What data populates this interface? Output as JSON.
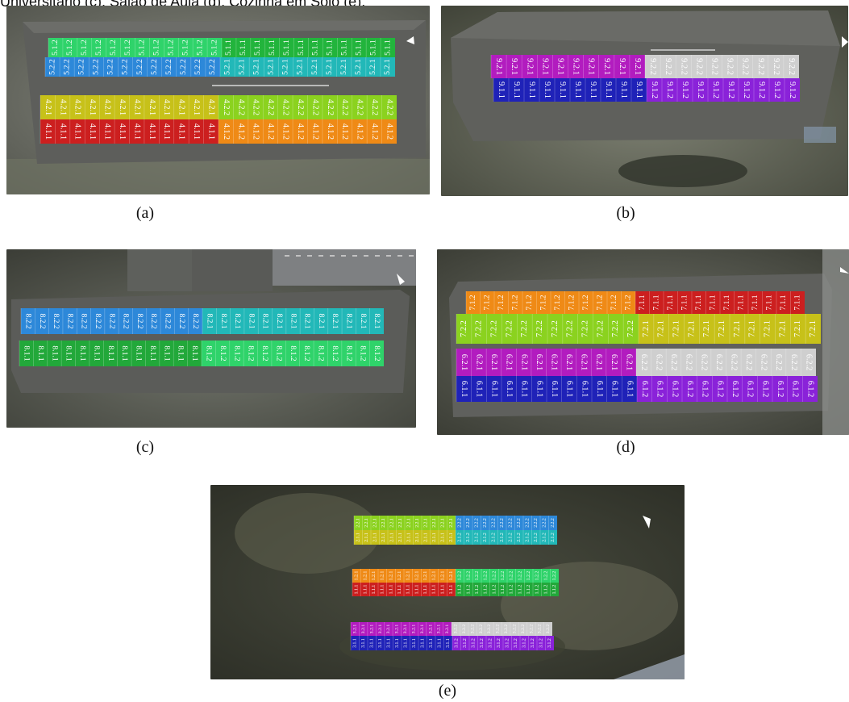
{
  "top_caption": "Universitário (c), Salão de Aula (d), Cozinha em Solo (e).",
  "panels": [
    {
      "id": "a",
      "label": "(a)",
      "rows": [
        {
          "blocks": [
            {
              "label": "5.1.2",
              "color": "#2fd36a",
              "n": 12
            },
            {
              "label": "5.1.1",
              "color": "#22b43c",
              "n": 12
            }
          ],
          "flip": true
        },
        {
          "blocks": [
            {
              "label": "5.2.2",
              "color": "#2d88d9",
              "n": 12
            },
            {
              "label": "5.2.1",
              "color": "#22b8b8",
              "n": 12
            }
          ],
          "flip": true
        },
        {
          "blocks": [
            {
              "label": "4.2.1",
              "color": "#c7c119",
              "n": 12
            },
            {
              "label": "4.2.2",
              "color": "#8bd21f",
              "n": 12
            }
          ],
          "flip": false
        },
        {
          "blocks": [
            {
              "label": "4.1.1",
              "color": "#cc1f1f",
              "n": 12
            },
            {
              "label": "4.1.2",
              "color": "#ef8a16",
              "n": 12
            }
          ],
          "flip": false
        }
      ]
    },
    {
      "id": "b",
      "label": "(b)",
      "rows": [
        {
          "blocks": [
            {
              "label": "9.2.1",
              "color": "#b21cbf",
              "n": 10
            },
            {
              "label": "9.2.2",
              "color": "#cfcfcf",
              "n": 10
            }
          ],
          "flip": false
        },
        {
          "blocks": [
            {
              "label": "9.1.1",
              "color": "#1f22b8",
              "n": 10
            },
            {
              "label": "9.1.2",
              "color": "#8a22d9",
              "n": 10
            }
          ],
          "flip": false
        }
      ]
    },
    {
      "id": "c",
      "label": "(c)",
      "rows": [
        {
          "blocks": [
            {
              "label": "8.2.2",
              "color": "#2d88d9",
              "n": 13
            },
            {
              "label": "8.2.1",
              "color": "#22b8b8",
              "n": 13
            }
          ],
          "flip": false
        },
        {
          "blocks": [
            {
              "label": "8.1.1",
              "color": "#22a83a",
              "n": 13
            },
            {
              "label": "8.1.2",
              "color": "#2fd36a",
              "n": 13
            }
          ],
          "flip": false
        }
      ]
    },
    {
      "id": "d",
      "label": "(d)",
      "rows": [
        {
          "blocks": [
            {
              "label": "7.1.2",
              "color": "#ef8a16",
              "n": 12
            },
            {
              "label": "7.1.1",
              "color": "#cc1f1f",
              "n": 12
            }
          ],
          "flip": true
        },
        {
          "blocks": [
            {
              "label": "7.2.2",
              "color": "#8bd21f",
              "n": 12
            },
            {
              "label": "7.2.1",
              "color": "#c7c119",
              "n": 12
            }
          ],
          "flip": true
        },
        {
          "blocks": [
            {
              "label": "6.2.1",
              "color": "#b21cbf",
              "n": 12
            },
            {
              "label": "6.2.2",
              "color": "#cfcfcf",
              "n": 12
            }
          ],
          "flip": false
        },
        {
          "blocks": [
            {
              "label": "6.1.1",
              "color": "#1f22b8",
              "n": 12
            },
            {
              "label": "6.1.2",
              "color": "#8a22d9",
              "n": 12
            }
          ],
          "flip": false
        }
      ]
    },
    {
      "id": "e",
      "label": "(e)",
      "groups": [
        [
          {
            "blocks": [
              {
                "label": "2.2.1",
                "color": "#8bd21f",
                "n": 12
              },
              {
                "label": "2.2.2",
                "color": "#2d88d9",
                "n": 12
              }
            ],
            "flip": true
          },
          {
            "blocks": [
              {
                "label": "2.1.1",
                "color": "#c7c119",
                "n": 12
              },
              {
                "label": "2.1.2",
                "color": "#22b8b8",
                "n": 12
              }
            ],
            "flip": true
          }
        ],
        [
          {
            "blocks": [
              {
                "label": "1.2.1",
                "color": "#ef8a16",
                "n": 12
              },
              {
                "label": "1.2.2",
                "color": "#2fd36a",
                "n": 12
              }
            ],
            "flip": true
          },
          {
            "blocks": [
              {
                "label": "1.1.1",
                "color": "#cc1f1f",
                "n": 12
              },
              {
                "label": "1.1.2",
                "color": "#22a83a",
                "n": 12
              }
            ],
            "flip": true
          }
        ],
        [
          {
            "blocks": [
              {
                "label": "3.2.1",
                "color": "#b21cbf",
                "n": 12
              },
              {
                "label": "3.2.2",
                "color": "#cfcfcf",
                "n": 12
              }
            ],
            "flip": true
          },
          {
            "blocks": [
              {
                "label": "3.1.1",
                "color": "#1f22b8",
                "n": 12
              },
              {
                "label": "3.1.2",
                "color": "#8a22d9",
                "n": 12
              }
            ],
            "flip": true
          }
        ]
      ]
    }
  ]
}
